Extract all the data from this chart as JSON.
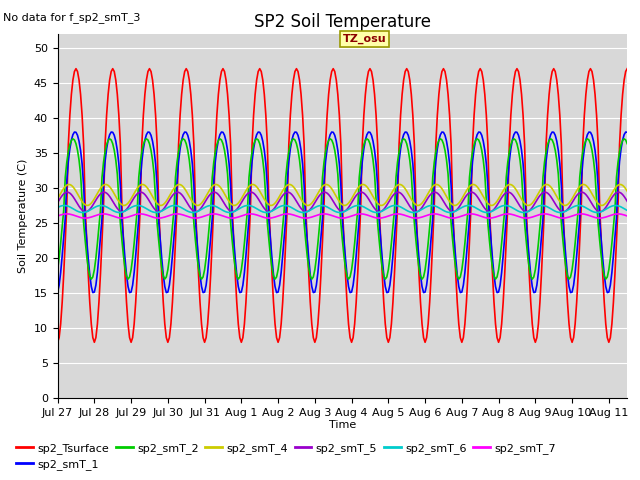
{
  "title": "SP2 Soil Temperature",
  "no_data_text": "No data for f_sp2_smT_3",
  "ylabel": "Soil Temperature (C)",
  "xlabel": "Time",
  "tz_label": "TZ_osu",
  "ylim": [
    0,
    52
  ],
  "yticks": [
    0,
    5,
    10,
    15,
    20,
    25,
    30,
    35,
    40,
    45,
    50
  ],
  "bg_color": "#d8d8d8",
  "fig_color": "#ffffff",
  "series": {
    "sp2_Tsurface": {
      "color": "#ff0000",
      "lw": 1.2
    },
    "sp2_smT_1": {
      "color": "#0000ff",
      "lw": 1.2
    },
    "sp2_smT_2": {
      "color": "#00cc00",
      "lw": 1.2
    },
    "sp2_smT_4": {
      "color": "#cccc00",
      "lw": 1.2
    },
    "sp2_smT_5": {
      "color": "#9900cc",
      "lw": 1.2
    },
    "sp2_smT_6": {
      "color": "#00cccc",
      "lw": 1.2
    },
    "sp2_smT_7": {
      "color": "#ff00ff",
      "lw": 1.2
    }
  },
  "xtick_labels": [
    "Jul 27",
    "Jul 28",
    "Jul 29",
    "Jul 30",
    "Jul 31",
    "Aug 1",
    "Aug 2",
    "Aug 3",
    "Aug 4",
    "Aug 5",
    "Aug 6",
    "Aug 7",
    "Aug 8",
    "Aug 9",
    "Aug 10",
    "Aug 11"
  ],
  "n_days": 15.5,
  "grid_color": "#ffffff",
  "title_fontsize": 12,
  "axis_fontsize": 8,
  "tick_fontsize": 8
}
